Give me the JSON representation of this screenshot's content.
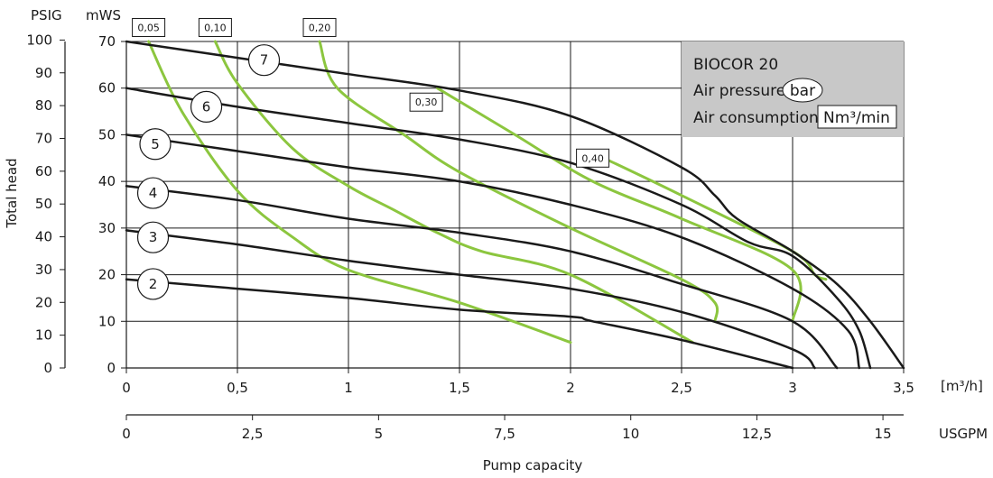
{
  "chart_data": {
    "type": "line",
    "title": "BIOCOR 20",
    "legend": {
      "air_pressure_label": "Air pressure",
      "air_pressure_unit": "bar",
      "air_consumption_label": "Air consumption",
      "air_consumption_unit": "Nm³/min",
      "background": "#c8c8c8"
    },
    "y_left_label": "Total head",
    "psig_label": "PSIG",
    "mws_label": "mWS",
    "psig_ticks": [
      "0",
      "10",
      "20",
      "30",
      "40",
      "50",
      "60",
      "70",
      "80",
      "90",
      "100"
    ],
    "mws_ticks": [
      "0",
      "10",
      "20",
      "30",
      "40",
      "50",
      "60",
      "70"
    ],
    "x_m3h_ticks": [
      "0",
      "0,5",
      "1",
      "1,5",
      "2",
      "2,5",
      "3",
      "3,5"
    ],
    "x_m3h_unit": "[m³/h]",
    "x_usgpm_ticks": [
      "0",
      "2,5",
      "5",
      "7,5",
      "10",
      "12,5",
      "15"
    ],
    "x_usgpm_unit": "USGPM",
    "xlabel": "Pump capacity",
    "xlim": [
      0,
      3.5
    ],
    "ylim": [
      0,
      70
    ],
    "grid": true,
    "colors": {
      "pressure": "#1a1a1a",
      "consumption": "#8cc63f",
      "grid": "#1a1a1a"
    },
    "pressure_series": [
      {
        "name": "2",
        "points": [
          [
            0,
            19
          ],
          [
            0.5,
            17
          ],
          [
            1,
            15
          ],
          [
            1.5,
            12.5
          ],
          [
            2,
            11
          ],
          [
            2.1,
            10
          ],
          [
            2.5,
            6
          ],
          [
            3,
            0
          ]
        ]
      },
      {
        "name": "3",
        "points": [
          [
            0,
            29.5
          ],
          [
            0.5,
            26.5
          ],
          [
            1,
            23
          ],
          [
            1.5,
            20
          ],
          [
            2,
            17
          ],
          [
            2.5,
            12
          ],
          [
            3,
            4
          ],
          [
            3.1,
            0
          ]
        ]
      },
      {
        "name": "4",
        "points": [
          [
            0,
            39
          ],
          [
            0.5,
            36
          ],
          [
            1,
            32
          ],
          [
            1.5,
            29
          ],
          [
            2,
            25
          ],
          [
            2.5,
            18
          ],
          [
            3,
            10
          ],
          [
            3.2,
            0
          ]
        ]
      },
      {
        "name": "5",
        "points": [
          [
            0,
            50
          ],
          [
            0.5,
            46.5
          ],
          [
            1,
            43
          ],
          [
            1.5,
            40
          ],
          [
            2,
            35
          ],
          [
            2.5,
            28
          ],
          [
            3,
            17
          ],
          [
            3.25,
            8
          ],
          [
            3.3,
            0
          ]
        ]
      },
      {
        "name": "6",
        "points": [
          [
            0,
            60
          ],
          [
            0.5,
            56
          ],
          [
            1,
            52.5
          ],
          [
            1.5,
            49
          ],
          [
            2,
            44
          ],
          [
            2.5,
            35
          ],
          [
            2.8,
            27
          ],
          [
            3,
            24
          ],
          [
            3.2,
            15
          ],
          [
            3.3,
            8
          ],
          [
            3.35,
            0
          ]
        ]
      },
      {
        "name": "7",
        "points": [
          [
            0,
            70
          ],
          [
            0.5,
            66.5
          ],
          [
            1,
            63
          ],
          [
            1.5,
            59.5
          ],
          [
            2,
            54
          ],
          [
            2.5,
            43
          ],
          [
            2.65,
            37
          ],
          [
            2.75,
            32
          ],
          [
            3,
            25
          ],
          [
            3.2,
            18
          ],
          [
            3.35,
            10
          ],
          [
            3.5,
            0
          ]
        ]
      }
    ],
    "consumption_series": [
      {
        "name": "0,05",
        "points": [
          [
            0.1,
            70
          ],
          [
            0.25,
            55
          ],
          [
            0.5,
            38
          ],
          [
            0.75,
            28
          ],
          [
            1,
            21
          ],
          [
            1.5,
            14
          ],
          [
            2,
            5.5
          ]
        ]
      },
      {
        "name": "0,10",
        "points": [
          [
            0.4,
            70
          ],
          [
            0.5,
            61
          ],
          [
            0.75,
            47
          ],
          [
            1,
            39
          ],
          [
            1.2,
            34
          ],
          [
            1.4,
            29
          ],
          [
            1.6,
            25
          ],
          [
            2,
            20
          ],
          [
            2.55,
            5.5
          ]
        ]
      },
      {
        "name": "0,20",
        "points": [
          [
            0.87,
            70
          ],
          [
            0.95,
            60
          ],
          [
            1.25,
            50
          ],
          [
            1.5,
            42
          ],
          [
            2,
            30
          ],
          [
            2.5,
            19
          ],
          [
            2.65,
            14
          ],
          [
            2.65,
            10
          ]
        ]
      },
      {
        "name": "0,30",
        "points": [
          [
            1.4,
            60
          ],
          [
            1.75,
            50
          ],
          [
            2.1,
            40
          ],
          [
            2.5,
            32
          ],
          [
            3,
            21
          ],
          [
            3.0,
            10
          ]
        ]
      },
      {
        "name": "0,40",
        "points": [
          [
            2.15,
            45
          ],
          [
            2.5,
            37
          ],
          [
            3,
            25
          ],
          [
            3.1,
            20
          ],
          [
            3.15,
            19
          ]
        ]
      }
    ],
    "labels_pressure": [
      {
        "text": "7",
        "x": 0.62,
        "y": 66
      },
      {
        "text": "6",
        "x": 0.36,
        "y": 56
      },
      {
        "text": "5",
        "x": 0.13,
        "y": 48
      },
      {
        "text": "4",
        "x": 0.12,
        "y": 37.5
      },
      {
        "text": "3",
        "x": 0.12,
        "y": 28
      },
      {
        "text": "2",
        "x": 0.12,
        "y": 18
      }
    ],
    "labels_consumption": [
      {
        "text": "0,05",
        "x": 0.1,
        "y": 73
      },
      {
        "text": "0,10",
        "x": 0.4,
        "y": 73
      },
      {
        "text": "0,20",
        "x": 0.87,
        "y": 73
      },
      {
        "text": "0,30",
        "x": 1.35,
        "y": 57
      },
      {
        "text": "0,40",
        "x": 2.1,
        "y": 45
      }
    ]
  }
}
